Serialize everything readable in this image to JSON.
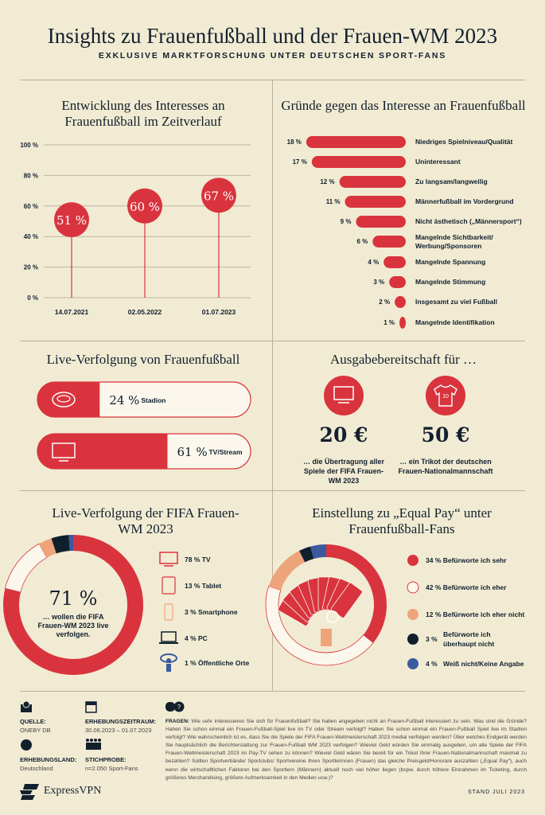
{
  "header": {
    "title": "Insights zu Frauenfußball und der Frauen-WM 2023",
    "subtitle": "EXKLUSIVE MARKTFORSCHUNG UNTER DEUTSCHEN SPORT-FANS"
  },
  "colors": {
    "red": "#d9343e",
    "navy": "#0f1f2e",
    "orange": "#eea47a",
    "blue": "#3a5aa0",
    "white": "#fbf7ec",
    "bg": "#f2ebd3"
  },
  "chart_data": [
    {
      "type": "lollipop",
      "title": "Entwicklung des Interesses an Frauenfußball im Zeitverlauf",
      "categories": [
        "14.07.2021",
        "02.05.2022",
        "01.07.2023"
      ],
      "values": [
        51,
        60,
        67
      ],
      "labels": [
        "51 %",
        "60 %",
        "67 %"
      ],
      "yticks": [
        "0 %",
        "20 %",
        "40 %",
        "60 %",
        "80 %",
        "100 %"
      ],
      "ylim": [
        0,
        100
      ],
      "grid": true
    },
    {
      "type": "bar",
      "title": "Gründe gegen das Interesse an Frauenfußball",
      "categories": [
        "Niedriges Spielniveau/Qualität",
        "Uninteressant",
        "Zu langsam/langweilig",
        "Männerfußball im Vordergrund",
        "Nicht ästhetisch („Männersport“)",
        "Mangelnde Sichtbarkeit/ Werbung/Sponsoren",
        "Mangelnde Spannung",
        "Mangelnde Stimmung",
        "Insgesamt zu viel Fußball",
        "Mangelnde Identifikation"
      ],
      "values": [
        18,
        17,
        12,
        11,
        9,
        6,
        4,
        3,
        2,
        1
      ],
      "labels": [
        "18 %",
        "17 %",
        "12 %",
        "11 %",
        "9 %",
        "6 %",
        "4 %",
        "3 %",
        "2 %",
        "1 %"
      ]
    },
    {
      "type": "bar",
      "title": "Live-Verfolgung von Frauenfußball",
      "categories": [
        "Stadion",
        "TV/Stream"
      ],
      "values": [
        24,
        61
      ],
      "labels": [
        "24 %",
        "61 %"
      ],
      "icons": [
        "stadium-icon",
        "tv-icon"
      ]
    },
    {
      "type": "pie",
      "title": "Live-Verfolgung der FIFA Frauen-WM 2023",
      "center_value": "71 %",
      "center_text": "… wollen die FIFA Frauen-WM 2023 live verfolgen.",
      "categories": [
        "TV",
        "Tablet",
        "Smartphone",
        "PC",
        "Öffentliche Orte"
      ],
      "values": [
        78,
        13,
        3,
        4,
        1
      ],
      "labels": [
        "78 % TV",
        "13 % Tablet",
        "3 % Smartphone",
        "4 % PC",
        "1 % Öffentliche Orte"
      ],
      "colors": [
        "#d9343e",
        "#fbf7ec",
        "#eea47a",
        "#0f1f2e",
        "#3a5aa0"
      ]
    },
    {
      "type": "pie",
      "title": "Einstellung zu „Equal Pay“ unter Frauenfußball-Fans",
      "categories": [
        "Befürworte ich sehr",
        "Befürworte ich eher",
        "Befürworte ich eher nicht",
        "Befürworte ich überhaupt nicht",
        "Weiß nicht/Keine Angabe"
      ],
      "values": [
        34,
        42,
        12,
        3,
        4
      ],
      "labels": [
        "34 % Befürworte ich sehr",
        "42 % Befürworte ich eher",
        "12 % Befürworte ich eher nicht",
        "3 %|Befürworte ich überhaupt nicht",
        "4 %|Weiß nicht/Keine Angabe"
      ],
      "colors": [
        "#d9343e",
        "#fbf7ec",
        "#eea47a",
        "#0f1f2e",
        "#3a5aa0"
      ]
    }
  ],
  "spend": {
    "title": "Ausgabebereitschaft für …",
    "items": [
      {
        "value": "20 €",
        "text": "… die Übertragung aller Spiele der FIFA Frauen-WM 2023",
        "icon": "tv-icon"
      },
      {
        "value": "50 €",
        "text": "… ein Trikot der deutschen Frauen-Nationalmannschaft",
        "icon": "jersey-icon"
      }
    ]
  },
  "footer": {
    "quelle_label": "QUELLE:",
    "quelle": "ONEBY DB",
    "zeitraum_label": "ERHEBUNGSZEITRAUM:",
    "zeitraum": "30.06.2023 – 01.07.2023",
    "land_label": "ERHEBUNGSLAND:",
    "land": "Deutschland",
    "stichprobe_label": "STICHPROBE:",
    "stichprobe": "n=2.050 Sport-Fans",
    "fragen_label": "FRAGEN:",
    "fragen": "Wie sehr interessieren Sie sich für Frauenfußball? Sie haben angegeben nicht an Frauen-Fußball interessiert zu sein. Was sind die Gründe? Haben Sie schon einmal ein Frauen-Fußball-Spiel live im TV oder Stream verfolgt? Haben Sie schon einmal ein Frauen-Fußball Spiel live im Stadion verfolgt? Wie wahrscheinlich ist es, dass Sie die Spiele der FIFA Frauen-Weltmeisterschaft 2023 medial verfolgen werden? Über welches Endgerät werden Sie hauptsächlich die Berichterstattung zur Frauen-Fußball WM 2023 verfolgen? Wieviel Geld würden Sie einmalig ausgeben, um alle Spiele der FIFA Frauen-Weltmeisterschaft 2023 im Pay-TV sehen zu können? Wieviel Geld wären Sie bereit für ein Trikot Ihrer Frauen-Nationalmannschaft maximal zu bezahlen? Sollten Sportverbände/ Sportclubs/ Sportvereine Ihren Sportlerinnen (Frauen) das gleiche Preisgeld/Honorare auszahlen („Equal Pay“), auch wenn die wirtschaftlichen Faktoren bei den Sportlern (Männern) aktuell noch viel höher liegen (bspw. durch höhere Einnahmen im Ticketing, durch größeres Merchandising, größere Aufmerksamkeit in den Medien usw.)?",
    "brand": "ExpressVPN",
    "stand": "STAND JULI 2023"
  }
}
